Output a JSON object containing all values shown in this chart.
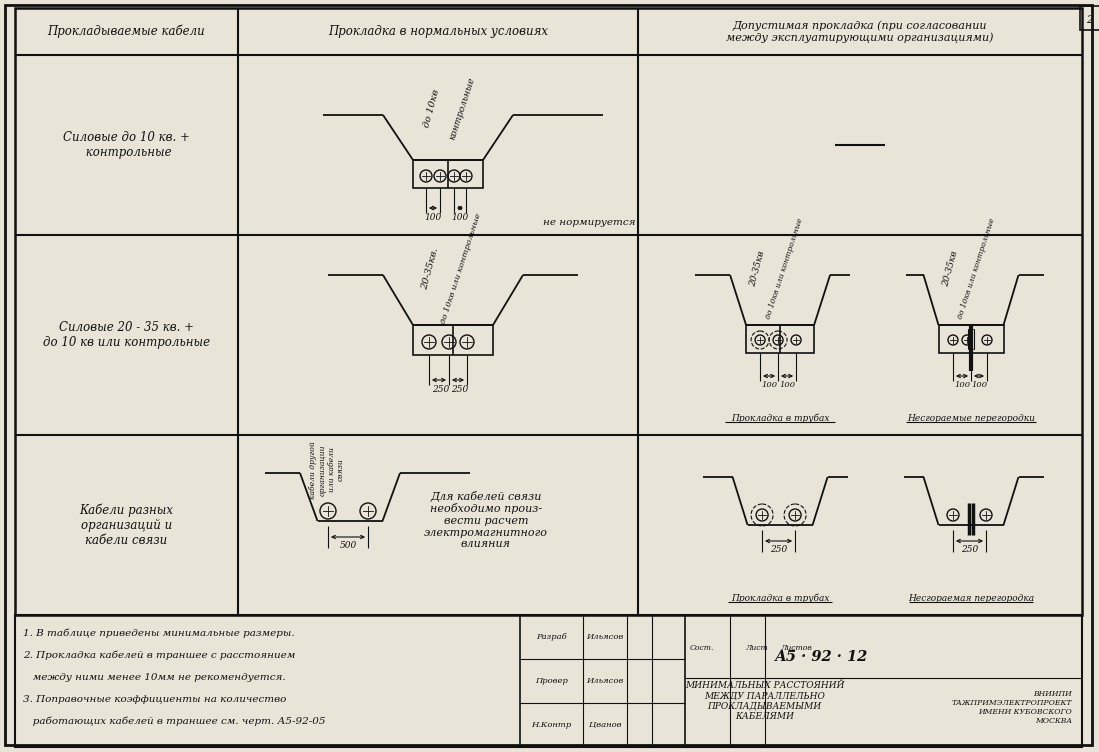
{
  "bg_color": "#e8e4d8",
  "line_color": "#111111",
  "title_col1": "Прокладываемые кабели",
  "title_col2": "Прокладка в нормальных условиях",
  "title_col3": "Допустимая прокладка (при согласовании\nмежду эксплуатирующими организациями)",
  "row1_label": "Силовые до 10 кв. +\n контрольные",
  "row2_label": "Силовые 20 - 35 кв. +\nдо 10 кв или контрольные",
  "row3_label": "Кабели разных\nорганизаций и\nкабели связи",
  "notes_line1": "1. В таблице приведены минимальные размеры.",
  "notes_line2": "2. Прокладка кабелей в траншее с расстоянием",
  "notes_line3": "   между ними менее 10мм не рекомендуется.",
  "notes_line4": "3. Поправочные коэффициенты на количество",
  "notes_line5": "   работающих кабелей в траншее см. черт. А5-92-05",
  "doc_number": "А5 · 92 · 12",
  "org_name": "ВНИИПИ\nТАЖПРИМЭЛЕКТРОПРОЕКТ\nИМЕНИ КУБОВСКОГО\nМОСКВА",
  "subtitle": "МИНИМАЛЬНЫХ РАССТОЯНИЙ\nМЕЖДУ ПАРАЛЛЕЛЬНО\nПРОКЛАДЫВАЕМЫМИ\nКАБЕЛЯМИ"
}
